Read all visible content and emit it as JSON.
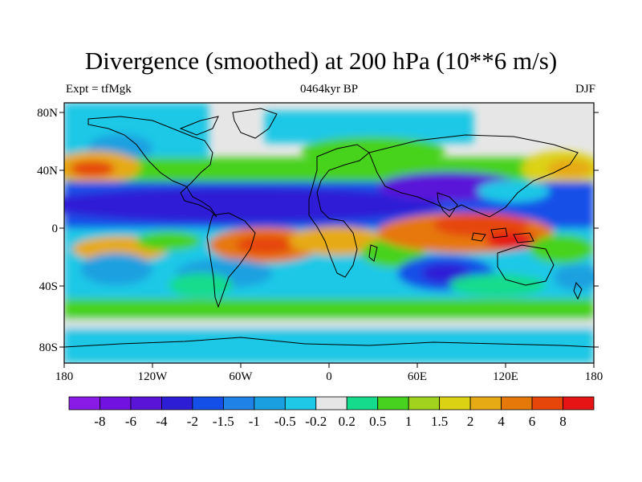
{
  "title": "Divergence (smoothed) at 200 hPa (10**6 m/s)",
  "subtitle_left": "Expt = tfMgk",
  "subtitle_center": "0464kyr BP",
  "subtitle_right": "DJF",
  "lat_labels": [
    "80N",
    "40N",
    "0",
    "40S",
    "80S"
  ],
  "lon_labels": [
    "180",
    "120W",
    "60W",
    "0",
    "60E",
    "120E",
    "180"
  ],
  "colorbar": {
    "colors": [
      "#8a1ae6",
      "#7112e0",
      "#5a14d8",
      "#2d1ed6",
      "#1450e8",
      "#1e82e6",
      "#1aa0e0",
      "#1ec8e6",
      "#e6e6e6",
      "#14dc8c",
      "#46d21e",
      "#a0d21e",
      "#dcd214",
      "#e6aa14",
      "#e6780a",
      "#e6460a",
      "#e61414"
    ],
    "labels": [
      "-8",
      "-6",
      "-4",
      "-2",
      "-1.5",
      "-1",
      "-0.5",
      "-0.2",
      "0.2",
      "0.5",
      "1",
      "1.5",
      "2",
      "4",
      "6",
      "8"
    ]
  },
  "colors": {
    "ocean_neutral": "#e6e6e6",
    "coastline": "#000000"
  }
}
